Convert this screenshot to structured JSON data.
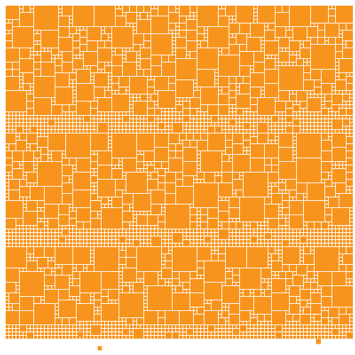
{
  "colors": {
    "background": "#ffffff",
    "tile": "#F7941D",
    "grid_line": "#ffffff"
  },
  "pattern": {
    "description_type": "square-packing mosaic",
    "tile_shape": "square",
    "grid_columns": 98,
    "grid_rows": 94,
    "size_levels_cells": [
      1,
      2,
      3,
      4,
      5,
      6,
      7
    ],
    "dense_bands_rows": [
      [
        0,
        31
      ],
      [
        36,
        63
      ],
      [
        68,
        90
      ]
    ],
    "sparse_bands_rows": [
      [
        31,
        36
      ],
      [
        63,
        68
      ],
      [
        90,
        94
      ]
    ],
    "random_seed": 7
  }
}
